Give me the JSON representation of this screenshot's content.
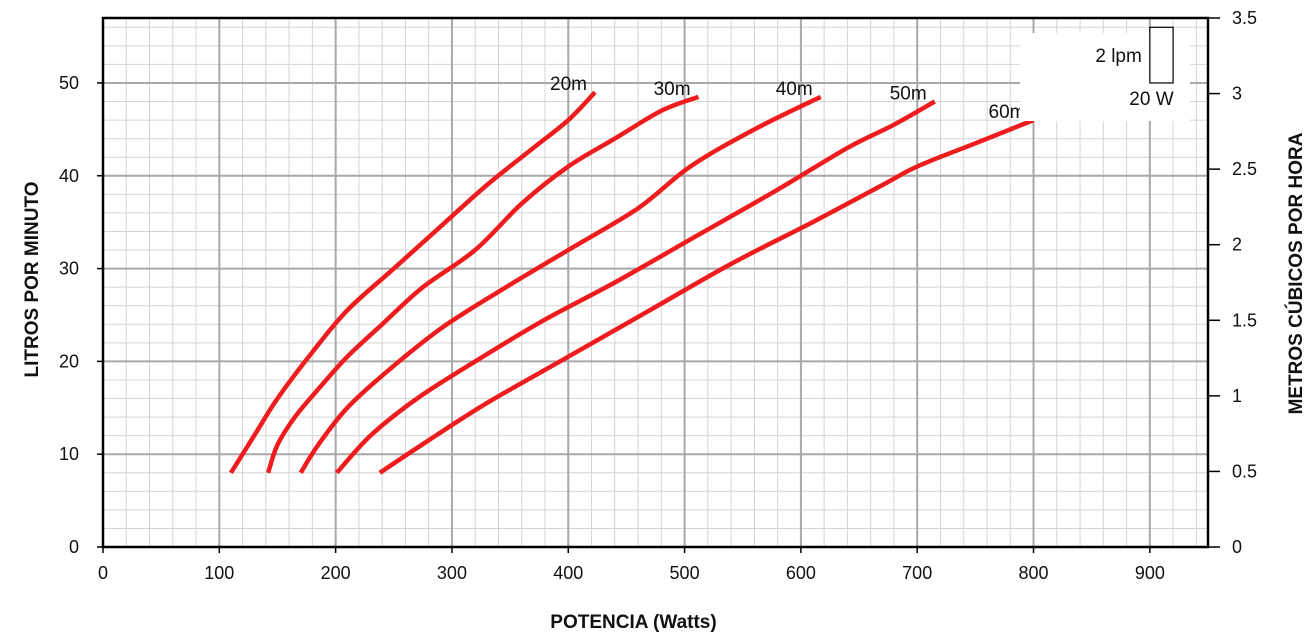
{
  "chart_data": {
    "type": "line",
    "xlabel": "POTENCIA (Watts)",
    "ylabel": "LITROS POR MINUTO",
    "y2label": "METROS CÚBICOS POR HORA",
    "xlim": [
      0,
      950
    ],
    "ylim": [
      0,
      57
    ],
    "y2lim": [
      0,
      3.5
    ],
    "x_ticks": [
      0,
      100,
      200,
      300,
      400,
      500,
      600,
      700,
      800,
      900
    ],
    "y_ticks": [
      0,
      10,
      20,
      30,
      40,
      50
    ],
    "y2_ticks": [
      "0",
      "0.5",
      "1",
      "1.5",
      "2",
      "2.5",
      "3",
      "3.5"
    ],
    "grid": true,
    "minor_grid": {
      "x_step": 20,
      "y_step": 2
    },
    "legend": {
      "placement": "top-right",
      "y_unit": "2 lpm",
      "x_unit": "20 W"
    },
    "colors": {
      "series": "#ee1c1c",
      "axis": "#000000",
      "major_grid": "#a8a8a8",
      "minor_grid": "#d4d4d4"
    },
    "series": [
      {
        "name": "20m",
        "points": [
          [
            110,
            8
          ],
          [
            130,
            12
          ],
          [
            150,
            16
          ],
          [
            180,
            21
          ],
          [
            210,
            25.5
          ],
          [
            250,
            30
          ],
          [
            290,
            34.5
          ],
          [
            330,
            39
          ],
          [
            370,
            43
          ],
          [
            400,
            46
          ],
          [
            423,
            49
          ]
        ]
      },
      {
        "name": "30m",
        "points": [
          [
            142,
            8
          ],
          [
            150,
            11
          ],
          [
            165,
            14
          ],
          [
            185,
            17
          ],
          [
            210,
            20.5
          ],
          [
            240,
            24
          ],
          [
            275,
            28
          ],
          [
            320,
            32
          ],
          [
            360,
            37
          ],
          [
            400,
            41
          ],
          [
            440,
            44
          ],
          [
            480,
            47
          ],
          [
            512,
            48.5
          ]
        ]
      },
      {
        "name": "40m",
        "points": [
          [
            170,
            8
          ],
          [
            185,
            11
          ],
          [
            210,
            15
          ],
          [
            245,
            19
          ],
          [
            290,
            23.5
          ],
          [
            340,
            27.5
          ],
          [
            400,
            32
          ],
          [
            460,
            36.5
          ],
          [
            505,
            41
          ],
          [
            560,
            45
          ],
          [
            617,
            48.5
          ]
        ]
      },
      {
        "name": "50m",
        "points": [
          [
            201,
            8
          ],
          [
            230,
            12
          ],
          [
            270,
            16
          ],
          [
            320,
            20
          ],
          [
            380,
            24.5
          ],
          [
            440,
            28.5
          ],
          [
            510,
            33.5
          ],
          [
            580,
            38.5
          ],
          [
            640,
            43
          ],
          [
            680,
            45.5
          ],
          [
            715,
            48
          ]
        ]
      },
      {
        "name": "60m",
        "points": [
          [
            238,
            8
          ],
          [
            280,
            11.5
          ],
          [
            330,
            15.5
          ],
          [
            400,
            20.5
          ],
          [
            470,
            25.5
          ],
          [
            540,
            30.5
          ],
          [
            610,
            35
          ],
          [
            670,
            39
          ],
          [
            700,
            41
          ],
          [
            750,
            43.5
          ],
          [
            800,
            46
          ]
        ]
      }
    ]
  }
}
